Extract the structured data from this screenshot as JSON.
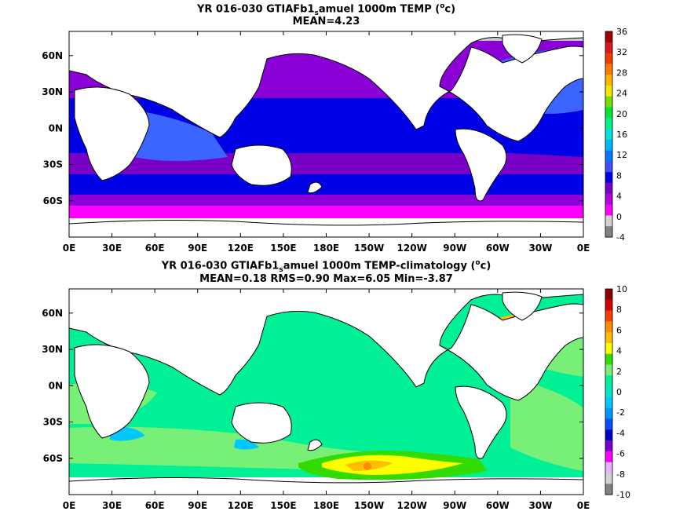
{
  "panels": [
    {
      "title_pre": "YR 016-030 GTIAFb1",
      "title_sub": "s",
      "title_mid": "amuel 1000m TEMP (",
      "title_sup": "o",
      "title_post": "c)",
      "stats": "MEAN=4.23",
      "colorbar_labels": [
        "36",
        "32",
        "28",
        "24",
        "20",
        "16",
        "12",
        "8",
        "4",
        "0",
        "-4"
      ],
      "colorbar_colors": [
        "#a00000",
        "#d81818",
        "#f03c00",
        "#ff7800",
        "#ffb400",
        "#f0e600",
        "#78dc00",
        "#00e632",
        "#00f08c",
        "#00e6d2",
        "#00b4ff",
        "#0078ff",
        "#3c50ff",
        "#0000e6",
        "#7800c8",
        "#b400dc",
        "#ff00ff",
        "#d2d2d2",
        "#828282"
      ]
    },
    {
      "title_pre": "YR 016-030 GTIAFb1",
      "title_sub": "s",
      "title_mid": "amuel 1000m TEMP-climatology (",
      "title_sup": "o",
      "title_post": "c)",
      "stats": "MEAN=0.18   RMS=0.90   Max=6.05   Min=-3.87",
      "colorbar_labels": [
        "10",
        "8",
        "6",
        "4",
        "2",
        "0",
        "-2",
        "-4",
        "-6",
        "-8",
        "-10"
      ],
      "colorbar_colors": [
        "#8c0000",
        "#d20000",
        "#ff3c00",
        "#ff8c00",
        "#ffbe00",
        "#ffff00",
        "#32dc00",
        "#78f078",
        "#00f096",
        "#00e6c8",
        "#00c8ff",
        "#0096ff",
        "#0050ff",
        "#0000c8",
        "#7800c8",
        "#ff00ff",
        "#e6b4ff",
        "#d2d2d2",
        "#828282"
      ]
    }
  ],
  "lat_labels": [
    "60N",
    "30N",
    "0N",
    "30S",
    "60S"
  ],
  "lon_labels": [
    "0E",
    "30E",
    "60E",
    "90E",
    "120E",
    "150E",
    "180E",
    "150W",
    "120W",
    "90W",
    "60W",
    "30W",
    "0E"
  ]
}
